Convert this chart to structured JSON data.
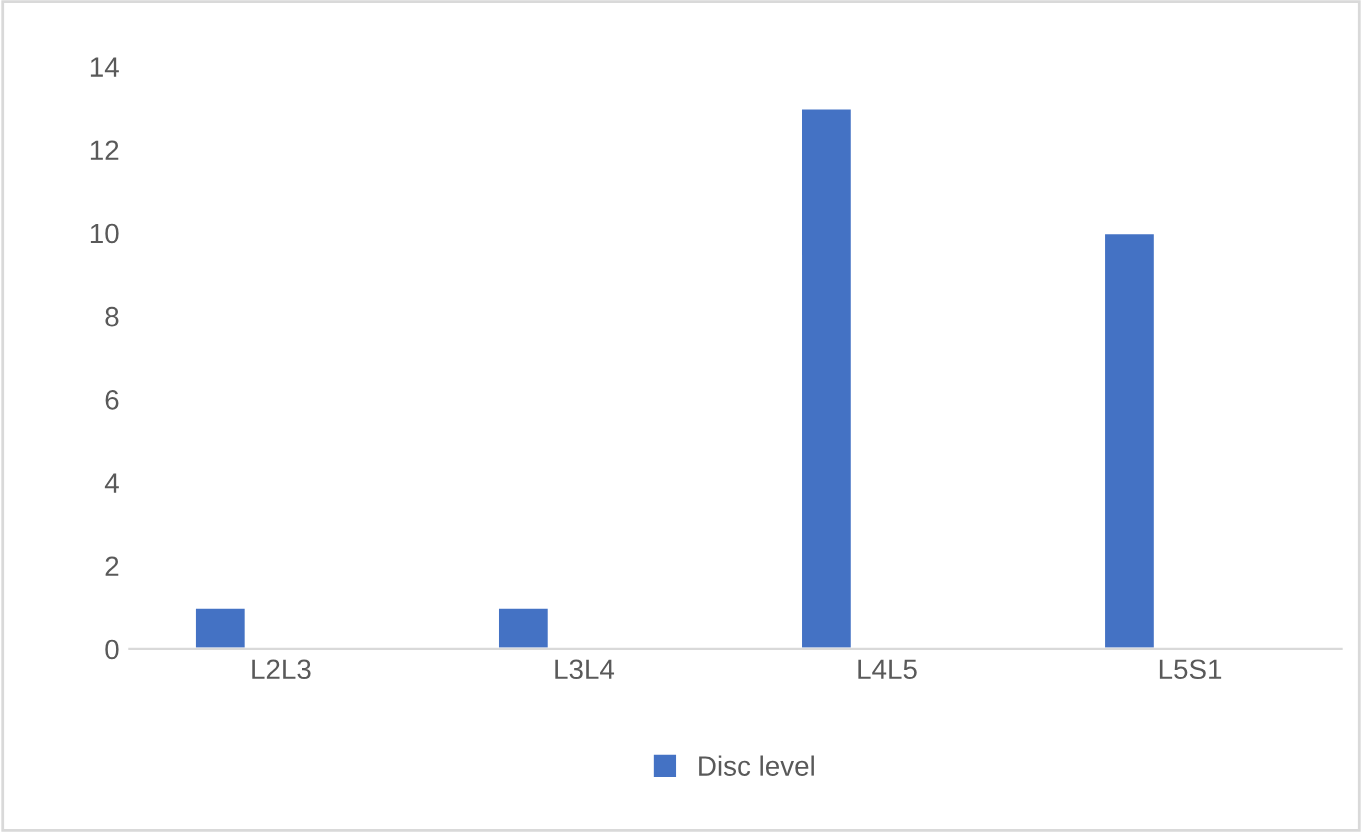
{
  "chart_data": {
    "type": "bar",
    "categories": [
      "L2L3",
      "L3L4",
      "L4L5",
      "L5S1"
    ],
    "series": [
      {
        "name": "Disc level",
        "color": "#4472c4",
        "values": [
          1,
          1,
          13,
          10
        ]
      }
    ],
    "ylim": [
      0,
      14
    ],
    "yticks": [
      0,
      2,
      4,
      6,
      8,
      10,
      12,
      14
    ],
    "grid": false,
    "legend": "bottom"
  }
}
